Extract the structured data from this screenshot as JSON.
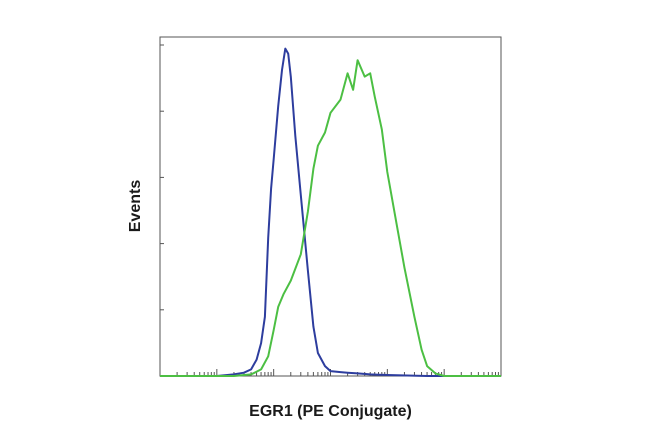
{
  "chart_data": {
    "type": "line",
    "title": "",
    "xlabel": "EGR1 (PE Conjugate)",
    "ylabel": "Events",
    "x_scale": "log",
    "xlim": [
      0.1,
      100000
    ],
    "ylim": [
      0,
      1
    ],
    "grid": false,
    "legend": "none",
    "series": [
      {
        "color": "#2d3d9e",
        "x": [
          0.1,
          1,
          2,
          3,
          4,
          5,
          6,
          7,
          8,
          9,
          10,
          12,
          14,
          16,
          18,
          20,
          24,
          30,
          40,
          50,
          60,
          80,
          100,
          150,
          200,
          300,
          500,
          1000,
          5000,
          100000
        ],
        "y": [
          0,
          0,
          0.005,
          0.01,
          0.02,
          0.05,
          0.1,
          0.18,
          0.42,
          0.57,
          0.66,
          0.82,
          0.93,
          0.995,
          0.98,
          0.91,
          0.73,
          0.55,
          0.32,
          0.15,
          0.07,
          0.03,
          0.015,
          0.012,
          0.01,
          0.008,
          0.005,
          0.003,
          0,
          0
        ]
      },
      {
        "color": "#4cbf43",
        "x": [
          0.1,
          2,
          4,
          6,
          8,
          10,
          12,
          15,
          20,
          30,
          40,
          50,
          60,
          80,
          100,
          150,
          200,
          250,
          300,
          400,
          500,
          600,
          800,
          1000,
          1500,
          2000,
          3000,
          4000,
          5000,
          7000,
          10000,
          100000
        ],
        "y": [
          0,
          0,
          0.005,
          0.02,
          0.06,
          0.14,
          0.21,
          0.25,
          0.29,
          0.37,
          0.5,
          0.63,
          0.7,
          0.74,
          0.8,
          0.84,
          0.92,
          0.87,
          0.96,
          0.91,
          0.92,
          0.85,
          0.75,
          0.62,
          0.45,
          0.33,
          0.18,
          0.08,
          0.03,
          0.008,
          0,
          0
        ]
      }
    ]
  }
}
